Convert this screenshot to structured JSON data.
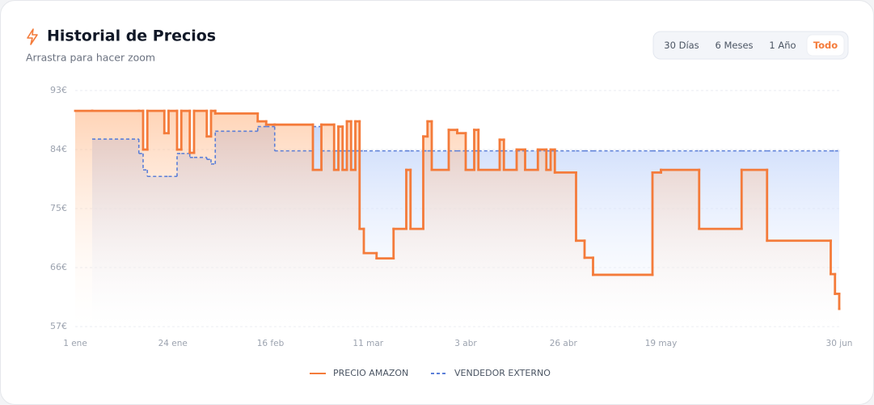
{
  "chart_data": {
    "type": "step-line",
    "title": "Historial de Precios",
    "subtitle": "Arrastra para hacer zoom",
    "ranges": [
      "30 Días",
      "6 Meses",
      "1 Año",
      "Todo"
    ],
    "active_range": 3,
    "x": [
      0,
      4,
      15,
      16,
      17,
      21,
      22,
      24,
      25,
      27,
      28,
      31,
      32,
      33,
      43,
      45,
      47,
      56,
      58,
      61,
      62,
      63,
      64,
      65,
      66,
      67,
      68,
      71,
      75,
      78,
      79,
      82,
      83,
      84,
      88,
      90,
      92,
      94,
      95,
      100,
      101,
      104,
      106,
      109,
      111,
      112,
      113,
      118,
      120,
      122,
      136,
      138,
      147,
      157,
      163,
      178,
      179,
      180
    ],
    "series": [
      {
        "name": "PRECIO AMAZON",
        "color": "#f47b3a",
        "style": "solid",
        "values": [
          89.9,
          89.9,
          89.9,
          84.0,
          89.9,
          86.5,
          89.9,
          84.0,
          89.9,
          83.5,
          89.9,
          86.0,
          89.9,
          89.5,
          88.3,
          87.8,
          87.8,
          80.9,
          87.8,
          80.9,
          87.5,
          80.9,
          88.3,
          80.9,
          88.3,
          71.9,
          68.2,
          67.4,
          71.9,
          80.9,
          71.9,
          86.0,
          88.3,
          80.9,
          87.0,
          86.5,
          80.9,
          87.0,
          80.9,
          85.5,
          80.9,
          84.0,
          80.9,
          84.0,
          80.9,
          84.0,
          80.5,
          70.1,
          67.5,
          64.9,
          80.5,
          80.9,
          71.9,
          80.9,
          70.1,
          65.0,
          62.0,
          59.7
        ]
      },
      {
        "name": "VENDEDOR EXTERNO",
        "color": "#5b7fd8",
        "style": "dashed",
        "values": [
          null,
          85.6,
          83.4,
          80.9,
          79.9,
          79.9,
          79.9,
          83.4,
          83.4,
          82.8,
          82.8,
          82.5,
          81.8,
          86.8,
          87.5,
          87.5,
          83.8,
          87.5,
          83.8,
          83.8,
          83.8,
          83.8,
          83.8,
          83.8,
          83.8,
          83.8,
          83.8,
          83.8,
          83.8,
          83.8,
          83.8,
          83.8,
          83.8,
          83.8,
          83.8,
          83.8,
          83.8,
          83.8,
          83.8,
          83.8,
          83.8,
          83.8,
          83.8,
          83.8,
          83.8,
          83.8,
          83.8,
          83.8,
          83.8,
          83.8,
          83.8,
          83.8,
          83.8,
          83.8,
          83.8,
          83.8,
          83.8,
          83.8
        ]
      }
    ],
    "xlim": [
      0,
      180
    ],
    "xticks": [
      {
        "value": 0,
        "label": "1 ene"
      },
      {
        "value": 23,
        "label": "24 ene"
      },
      {
        "value": 46,
        "label": "16 feb"
      },
      {
        "value": 69,
        "label": "11 mar"
      },
      {
        "value": 92,
        "label": "3 abr"
      },
      {
        "value": 115,
        "label": "26 abr"
      },
      {
        "value": 138,
        "label": "19 may"
      },
      {
        "value": 180,
        "label": "30 jun"
      }
    ],
    "ylim": [
      57,
      93
    ],
    "yticks": [
      {
        "value": 57,
        "label": "57€"
      },
      {
        "value": 66,
        "label": "66€"
      },
      {
        "value": 75,
        "label": "75€"
      },
      {
        "value": 84,
        "label": "84€"
      },
      {
        "value": 93,
        "label": "93€"
      }
    ],
    "grid": true,
    "legend": "bottom"
  }
}
